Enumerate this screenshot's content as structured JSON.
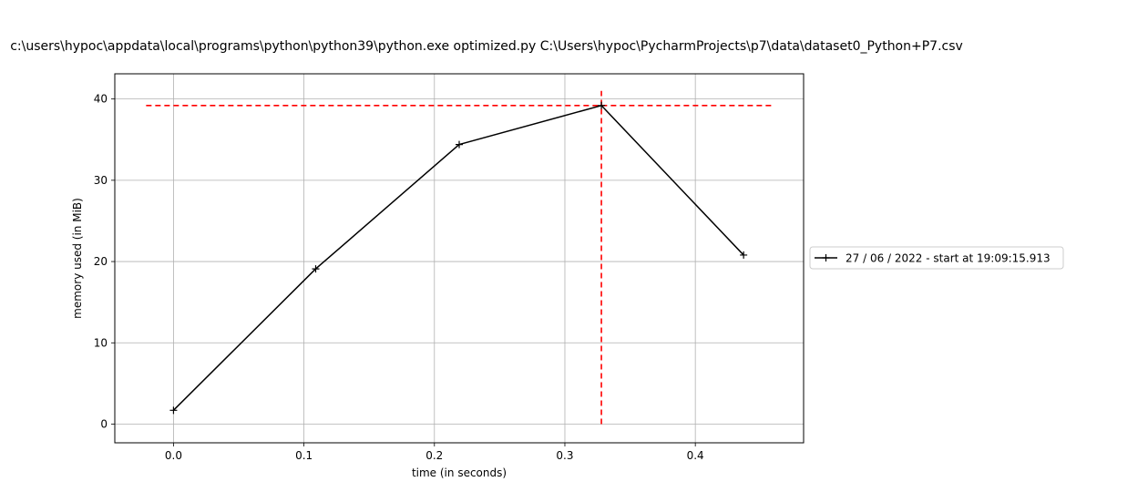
{
  "chart_data": {
    "type": "line",
    "title": "c:\\users\\hypoc\\appdata\\local\\programs\\python\\python39\\python.exe optimized.py C:\\Users\\hypoc\\PycharmProjects\\p7\\data\\dataset0_Python+P7.csv",
    "xlabel": "time (in seconds)",
    "ylabel": "memory used (in MiB)",
    "xlim": [
      -0.045,
      0.483
    ],
    "ylim": [
      -2.3,
      43.1
    ],
    "xticks": [
      0.0,
      0.1,
      0.2,
      0.3,
      0.4
    ],
    "xtick_labels": [
      "0.0",
      "0.1",
      "0.2",
      "0.3",
      "0.4"
    ],
    "yticks": [
      0,
      10,
      20,
      30,
      40
    ],
    "ytick_labels": [
      "0",
      "10",
      "20",
      "30",
      "40"
    ],
    "grid": true,
    "legend_position": "right",
    "series": [
      {
        "name": "27 / 06 / 2022 - start at 19:09:15.913",
        "color": "#000000",
        "marker": "+",
        "x": [
          0.0,
          0.109,
          0.219,
          0.328,
          0.437
        ],
        "y": [
          1.7,
          19.1,
          34.4,
          39.2,
          20.8
        ]
      }
    ],
    "peak_markers": {
      "color": "#ff0000",
      "style": "dashed",
      "horizontal": {
        "y": 39.2,
        "x_from": -0.021,
        "x_to": 0.459
      },
      "vertical": {
        "x": 0.328,
        "y_from": 0.0,
        "y_to": 41.0
      }
    }
  }
}
